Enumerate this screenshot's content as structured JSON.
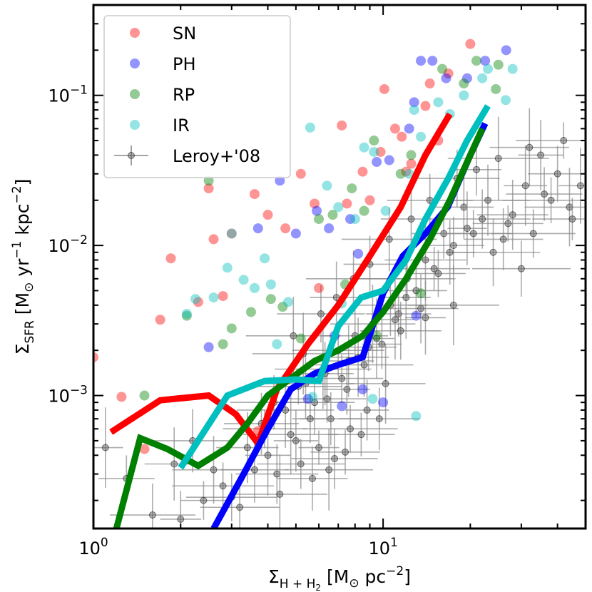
{
  "chart_data": {
    "type": "scatter",
    "title": "",
    "xlabel": "Σ_{H+H2} [M☉ pc⁻²]",
    "ylabel": "Σ_SFR [M☉ yr⁻¹ kpc⁻²]",
    "xscale": "log",
    "yscale": "log",
    "xlim": [
      1,
      50
    ],
    "ylim": [
      0.00013,
      0.4
    ],
    "x_tick_labels": [
      {
        "base": "10",
        "exp": "0",
        "value": 1
      },
      {
        "base": "10",
        "exp": "1",
        "value": 10
      }
    ],
    "y_tick_labels": [
      {
        "base": "10",
        "exp": "−3",
        "value": 0.001
      },
      {
        "base": "10",
        "exp": "−2",
        "value": 0.01
      },
      {
        "base": "10",
        "exp": "−1",
        "value": 0.1
      }
    ],
    "legend_position": "upper-left",
    "legend": [
      {
        "label": "SN",
        "color": "#ff0000",
        "marker": "circle"
      },
      {
        "label": "PH",
        "color": "#0000ff",
        "marker": "circle"
      },
      {
        "label": "RP",
        "color": "#008000",
        "marker": "circle"
      },
      {
        "label": "IR",
        "color": "#00bfbf",
        "marker": "circle"
      },
      {
        "label": "Leroy+'08",
        "color": "#000000",
        "marker": "errorbar"
      }
    ],
    "lines": [
      {
        "name": "SN",
        "color": "#ff0000",
        "x": [
          1.15,
          1.7,
          2.5,
          3.1,
          3.7,
          4.3,
          5.5,
          7.0,
          9.0,
          11.5,
          14.0,
          17.0
        ],
        "y": [
          0.00057,
          0.00093,
          0.001,
          0.00075,
          0.00048,
          0.0011,
          0.0022,
          0.004,
          0.0085,
          0.018,
          0.04,
          0.075
        ]
      },
      {
        "name": "PH",
        "color": "#0000ff",
        "x": [
          2.6,
          3.3,
          4.0,
          4.8,
          5.8,
          7.0,
          8.5,
          10.0,
          11.7,
          14.0,
          16.7,
          20.0,
          22.5
        ],
        "y": [
          0.00013,
          0.0003,
          0.0006,
          0.0011,
          0.0014,
          0.0016,
          0.0018,
          0.0048,
          0.0085,
          0.012,
          0.018,
          0.04,
          0.065
        ]
      },
      {
        "name": "RP",
        "color": "#008000",
        "x": [
          1.2,
          1.45,
          1.8,
          2.3,
          2.9,
          3.4,
          4.0,
          4.8,
          5.8,
          7.0,
          8.5,
          10.0,
          12.0,
          14.5,
          17.0,
          20.0,
          22.0
        ],
        "y": [
          0.00013,
          0.00052,
          0.00044,
          0.00034,
          0.00045,
          0.00065,
          0.001,
          0.0013,
          0.0017,
          0.002,
          0.0025,
          0.0036,
          0.006,
          0.011,
          0.02,
          0.04,
          0.06
        ]
      },
      {
        "name": "IR",
        "color": "#00bfbf",
        "x": [
          2.0,
          2.9,
          3.9,
          5.0,
          6.0,
          7.0,
          8.4,
          10.0,
          12.0,
          14.0,
          16.8,
          19.5,
          23.0
        ],
        "y": [
          0.00033,
          0.001,
          0.00125,
          0.00128,
          0.00125,
          0.0029,
          0.0045,
          0.005,
          0.008,
          0.015,
          0.028,
          0.05,
          0.085
        ]
      }
    ],
    "series": [
      {
        "name": "SN",
        "color": "#ff0000",
        "x": [
          1.0,
          1.25,
          1.5,
          1.7,
          1.85,
          2.3,
          2.5,
          2.6,
          2.8,
          3.0,
          3.6,
          4.0,
          3.7,
          4.6,
          5.8,
          6.0,
          7.5,
          9.0,
          10.1,
          11.0,
          11.6,
          12.5,
          14.5,
          14.0,
          16.8,
          15.5,
          20.0,
          5.2,
          8.5,
          9.8,
          12.0,
          7.2
        ],
        "y": [
          0.0018,
          0.00098,
          0.00044,
          0.0032,
          0.0082,
          0.0042,
          0.024,
          0.011,
          0.0046,
          0.012,
          0.022,
          0.016,
          0.00058,
          0.013,
          0.019,
          0.0052,
          0.019,
          0.02,
          0.11,
          0.06,
          0.053,
          0.035,
          0.12,
          0.085,
          0.14,
          0.05,
          0.22,
          0.03,
          0.031,
          0.042,
          0.031,
          0.063
        ]
      },
      {
        "name": "PH",
        "color": "#0000ff",
        "x": [
          2.5,
          3.7,
          4.4,
          5.0,
          5.9,
          6.5,
          7.7,
          8.2,
          9.5,
          10.5,
          12.3,
          12.8,
          13.5,
          14.8,
          16.5,
          19.5,
          22.5,
          26.6,
          8.5,
          10.0,
          6.8,
          7.2,
          5.5,
          13.0
        ],
        "y": [
          0.0021,
          0.013,
          0.027,
          0.012,
          0.017,
          0.013,
          0.015,
          0.0088,
          0.036,
          0.037,
          0.06,
          0.09,
          0.17,
          0.17,
          0.13,
          0.13,
          0.17,
          0.2,
          0.0011,
          0.0009,
          0.0025,
          0.00085,
          0.00095,
          0.0034
        ]
      },
      {
        "name": "RP",
        "color": "#008000",
        "x": [
          1.5,
          2.1,
          2.5,
          2.8,
          3.0,
          3.5,
          4.1,
          4.5,
          5.2,
          6.0,
          6.7,
          7.8,
          8.6,
          9.3,
          11.5,
          12.5,
          16.0,
          19.0,
          21.0,
          24.5,
          25.0,
          7.4,
          9.5,
          13.5
        ],
        "y": [
          0.001,
          0.0034,
          0.027,
          0.0022,
          0.0028,
          0.0036,
          0.0044,
          0.0039,
          0.0024,
          0.015,
          0.016,
          0.024,
          0.017,
          0.05,
          0.03,
          0.04,
          0.15,
          0.12,
          0.17,
          0.11,
          0.16,
          0.0055,
          0.0025,
          0.0048
        ]
      },
      {
        "name": "IR",
        "color": "#00bfbf",
        "x": [
          2.1,
          2.25,
          2.6,
          2.9,
          3.0,
          3.3,
          3.6,
          3.9,
          4.1,
          4.7,
          5.6,
          6.4,
          7.0,
          8.0,
          8.6,
          9.3,
          10.2,
          12.3,
          12.8,
          13.5,
          15.5,
          17.0,
          19.0,
          22.0,
          23.0,
          26.5,
          28.0,
          4.3,
          5.7,
          7.2,
          9.2,
          13.0
        ],
        "y": [
          0.0035,
          0.0044,
          0.0045,
          0.0071,
          0.012,
          0.0059,
          0.0052,
          0.0082,
          0.0055,
          0.0042,
          0.061,
          0.025,
          0.018,
          0.015,
          0.045,
          0.042,
          0.017,
          0.03,
          0.08,
          0.053,
          0.09,
          0.075,
          0.1,
          0.13,
          0.15,
          0.093,
          0.15,
          0.0022,
          0.00098,
          0.0041,
          0.00095,
          0.00073
        ]
      },
      {
        "name": "Leroy+'08",
        "color": "#000000",
        "x": [
          1.1,
          1.3,
          1.6,
          1.9,
          2.2,
          2.6,
          3.0,
          3.4,
          3.9,
          4.3,
          4.6,
          5.0,
          5.4,
          5.8,
          6.2,
          6.6,
          7.0,
          7.5,
          8.0,
          8.6,
          9.2,
          9.9,
          10.6,
          11.3,
          12.1,
          13.0,
          14.0,
          15.0,
          16.2,
          17.5,
          19.0,
          20.5,
          22.0,
          24.0,
          26.0,
          28.0,
          30.0,
          33.0,
          36.0,
          40.0,
          44.0,
          48.0,
          2.0,
          2.4,
          2.8,
          3.2,
          3.6,
          4.0,
          4.4,
          4.8,
          5.2,
          5.6,
          6.0,
          6.4,
          6.8,
          7.2,
          7.7,
          8.2,
          8.8,
          9.5,
          10.2,
          11.0,
          12.0,
          13.5,
          15.5,
          17.0,
          19.5,
          23.0,
          27.0,
          31.0,
          35.0,
          42.0,
          4.9,
          5.3,
          6.1,
          6.9,
          7.9,
          9.0,
          10.5,
          12.5,
          14.5,
          18.0,
          21.0,
          25.0,
          32.0,
          38.0,
          45.0,
          5.7,
          6.5,
          7.4,
          8.4,
          9.7,
          3.8,
          4.2,
          5.1,
          6.3,
          7.6,
          8.9,
          11.5,
          14.0,
          17.5
        ],
        "y": [
          0.00045,
          0.00028,
          0.00016,
          0.00035,
          0.0005,
          0.00032,
          0.00021,
          0.00045,
          0.0006,
          0.0003,
          0.0008,
          0.0005,
          0.0012,
          0.0009,
          0.0015,
          0.0007,
          0.002,
          0.0011,
          0.0025,
          0.0016,
          0.003,
          0.0022,
          0.004,
          0.0035,
          0.006,
          0.005,
          0.008,
          0.007,
          0.012,
          0.01,
          0.018,
          0.012,
          0.015,
          0.009,
          0.011,
          0.016,
          0.007,
          0.012,
          0.022,
          0.03,
          0.018,
          0.025,
          0.00015,
          0.0002,
          0.00025,
          0.00018,
          0.00032,
          0.0004,
          0.00022,
          0.00055,
          0.00035,
          0.0007,
          0.00045,
          0.00095,
          0.00038,
          0.0013,
          0.0006,
          0.0018,
          0.0008,
          0.0024,
          0.0012,
          0.0032,
          0.0045,
          0.0038,
          0.0065,
          0.009,
          0.013,
          0.02,
          0.014,
          0.025,
          0.04,
          0.05,
          0.0025,
          0.0019,
          0.0035,
          0.0045,
          0.006,
          0.0075,
          0.011,
          0.015,
          0.02,
          0.028,
          0.032,
          0.038,
          0.045,
          0.02,
          0.015,
          0.00028,
          0.00032,
          0.00042,
          0.00055,
          0.0007,
          0.00065,
          0.0009,
          0.00115,
          0.0014,
          0.0017,
          0.0021,
          0.0027,
          0.0033,
          0.004
        ]
      }
    ]
  }
}
